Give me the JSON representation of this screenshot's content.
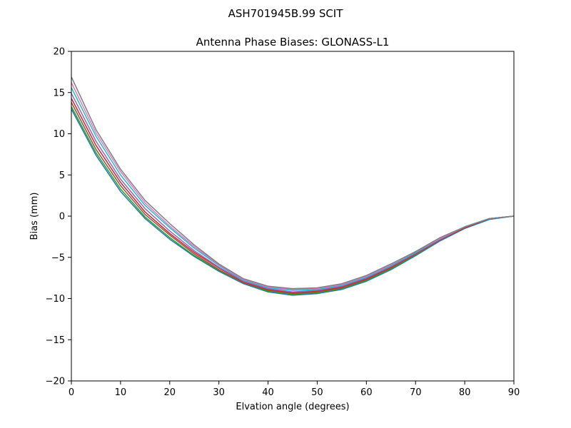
{
  "chart_data": {
    "type": "line",
    "suptitle": "ASH701945B.99   SCIT",
    "title": "Antenna Phase Biases: GLONASS-L1",
    "xlabel": "Elvation angle (degrees)",
    "ylabel": "Bias (mm)",
    "xlim": [
      0,
      90
    ],
    "ylim": [
      -20,
      20
    ],
    "xticks": [
      0,
      10,
      20,
      30,
      40,
      50,
      60,
      70,
      80,
      90
    ],
    "yticks": [
      -20,
      -15,
      -10,
      -5,
      0,
      5,
      10,
      15,
      20
    ],
    "ytick_labels": [
      "−20",
      "−15",
      "−10",
      "−5",
      "0",
      "5",
      "10",
      "15",
      "20"
    ],
    "grid": false,
    "legend": "none",
    "x": [
      0,
      5,
      10,
      15,
      20,
      25,
      30,
      35,
      40,
      45,
      50,
      55,
      60,
      65,
      70,
      75,
      80,
      85,
      90
    ],
    "series": [
      {
        "color": "#1f77b4",
        "values": [
          13.0,
          7.4,
          3.0,
          -0.3,
          -2.8,
          -4.9,
          -6.7,
          -8.2,
          -9.2,
          -9.6,
          -9.4,
          -8.9,
          -7.9,
          -6.5,
          -4.8,
          -3.0,
          -1.5,
          -0.4,
          0.0
        ]
      },
      {
        "color": "#2ca02c",
        "values": [
          13.3,
          7.7,
          3.3,
          -0.1,
          -2.6,
          -4.8,
          -6.6,
          -8.1,
          -9.1,
          -9.5,
          -9.3,
          -8.8,
          -7.8,
          -6.4,
          -4.7,
          -2.9,
          -1.4,
          -0.3,
          0.0
        ]
      },
      {
        "color": "#8c564b",
        "values": [
          13.8,
          8.1,
          3.7,
          0.2,
          -2.3,
          -4.6,
          -6.5,
          -8.1,
          -9.0,
          -9.4,
          -9.2,
          -8.7,
          -7.7,
          -6.3,
          -4.6,
          -2.9,
          -1.4,
          -0.3,
          0.0
        ]
      },
      {
        "color": "#d62728",
        "values": [
          14.3,
          8.6,
          4.1,
          0.5,
          -2.1,
          -4.4,
          -6.3,
          -8.0,
          -8.9,
          -9.3,
          -9.1,
          -8.6,
          -7.6,
          -6.2,
          -4.6,
          -2.8,
          -1.4,
          -0.3,
          0.0
        ]
      },
      {
        "color": "#9467bd",
        "values": [
          14.9,
          9.1,
          4.5,
          0.9,
          -1.8,
          -4.2,
          -6.2,
          -7.9,
          -8.8,
          -9.2,
          -9.0,
          -8.5,
          -7.5,
          -6.1,
          -4.5,
          -2.8,
          -1.3,
          -0.3,
          0.0
        ]
      },
      {
        "color": "#17becf",
        "values": [
          15.6,
          9.7,
          5.0,
          1.3,
          -1.4,
          -3.9,
          -6.0,
          -7.8,
          -8.7,
          -9.0,
          -8.9,
          -8.4,
          -7.4,
          -6.0,
          -4.4,
          -2.7,
          -1.3,
          -0.3,
          0.0
        ]
      },
      {
        "color": "#e377c2",
        "values": [
          16.2,
          10.1,
          5.4,
          1.6,
          -1.2,
          -3.7,
          -5.9,
          -7.7,
          -8.6,
          -8.9,
          -8.8,
          -8.3,
          -7.3,
          -5.9,
          -4.3,
          -2.7,
          -1.3,
          -0.3,
          0.0
        ]
      },
      {
        "color": "#7f7f7f",
        "values": [
          16.9,
          10.5,
          5.7,
          1.9,
          -0.9,
          -3.5,
          -5.8,
          -7.6,
          -8.5,
          -8.8,
          -8.7,
          -8.2,
          -7.2,
          -5.8,
          -4.3,
          -2.6,
          -1.3,
          -0.3,
          0.0
        ]
      }
    ]
  }
}
